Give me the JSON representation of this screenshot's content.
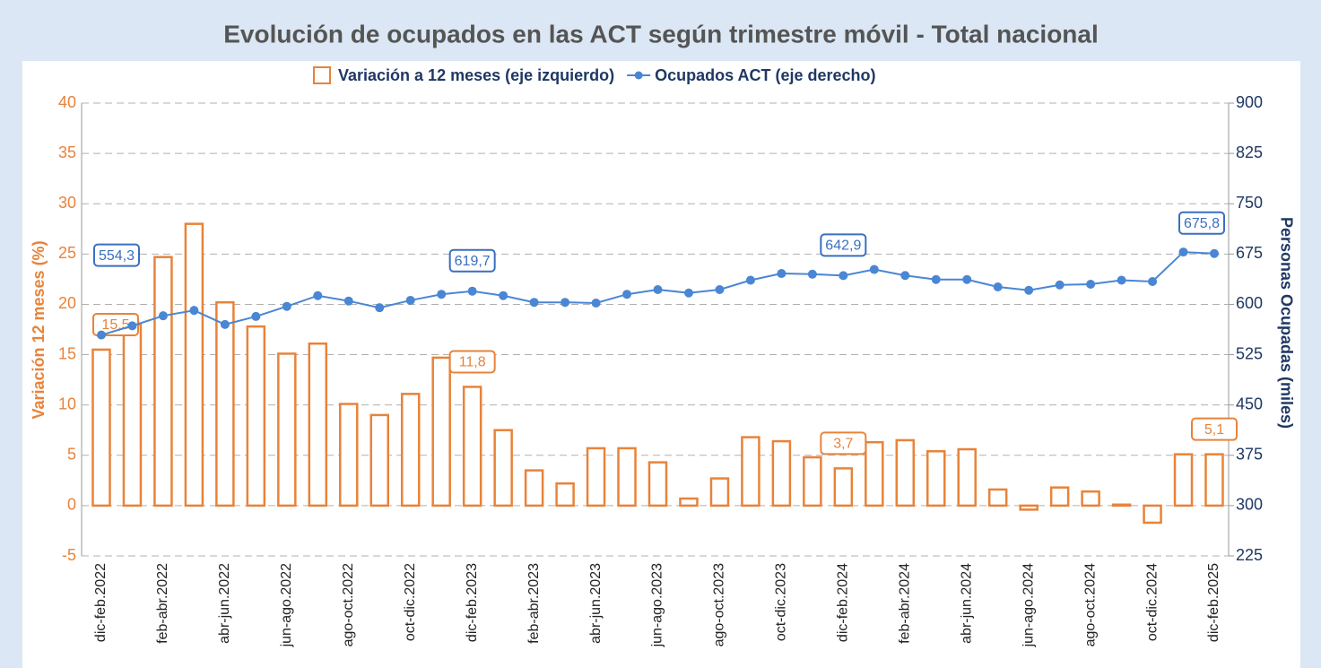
{
  "chart_data": {
    "type": "bar-line",
    "title": "Evolución de ocupados en las ACT según trimestre móvil - Total nacional",
    "ylabel": "Variación 12 meses (%)",
    "y2label": "Personas Ocupadas (miles)",
    "categories": [
      "dic-feb.2022",
      null,
      "feb-abr.2022",
      null,
      "abr-jun.2022",
      null,
      "jun-ago.2022",
      null,
      "ago-oct.2022",
      null,
      "oct-dic.2022",
      null,
      "dic-feb.2023",
      null,
      "feb-abr.2023",
      null,
      "abr-jun.2023",
      null,
      "jun-ago.2023",
      null,
      "ago-oct.2023",
      null,
      "oct-dic.2023",
      null,
      "dic-feb.2024",
      null,
      "feb-abr.2024",
      null,
      "abr-jun.2024",
      null,
      "jun-ago.2024",
      null,
      "ago-oct.2024",
      null,
      "oct-dic.2024",
      null,
      "dic-feb.2025"
    ],
    "series": [
      {
        "name": "Variación a 12 meses (eje izquierdo)",
        "type": "bar",
        "axis": "y",
        "color": "#e8833a",
        "values": [
          15.5,
          18.0,
          24.7,
          28.0,
          20.2,
          17.8,
          15.1,
          16.1,
          10.1,
          9.0,
          11.1,
          14.7,
          11.8,
          7.5,
          3.5,
          2.2,
          5.7,
          5.7,
          4.3,
          0.7,
          2.7,
          6.8,
          6.4,
          4.8,
          3.7,
          6.3,
          6.5,
          5.4,
          5.6,
          1.6,
          -0.4,
          1.8,
          1.4,
          0.1,
          -1.7,
          5.1,
          5.1
        ],
        "value_labels": [
          "15,5",
          null,
          null,
          null,
          null,
          null,
          null,
          null,
          null,
          null,
          null,
          null,
          "11,8",
          null,
          null,
          null,
          null,
          null,
          null,
          null,
          null,
          null,
          null,
          null,
          "3,7",
          null,
          null,
          null,
          null,
          null,
          null,
          null,
          null,
          null,
          null,
          null,
          "5,1"
        ]
      },
      {
        "name": "Ocupados ACT (eje derecho)",
        "type": "line",
        "axis": "y2",
        "color": "#4a86d4",
        "values": [
          554.3,
          568,
          583,
          591,
          570,
          582,
          597,
          613,
          605,
          595,
          606,
          615,
          619.7,
          613,
          603,
          603,
          602,
          615,
          622,
          617,
          622,
          636,
          646,
          645,
          642.9,
          652,
          643,
          637,
          637,
          626,
          621,
          629,
          630,
          636,
          634,
          678,
          675.8
        ],
        "value_labels": [
          "554,3",
          null,
          null,
          null,
          null,
          null,
          null,
          null,
          null,
          null,
          null,
          null,
          "619,7",
          null,
          null,
          null,
          null,
          null,
          null,
          null,
          null,
          null,
          null,
          null,
          "642,9",
          null,
          null,
          null,
          null,
          null,
          null,
          null,
          null,
          null,
          null,
          null,
          "675,8"
        ]
      }
    ],
    "ylim": [
      -5,
      40
    ],
    "yticks": [
      -5,
      0,
      5,
      10,
      15,
      20,
      25,
      30,
      35,
      40
    ],
    "y2lim": [
      225,
      900
    ],
    "y2ticks": [
      225,
      300,
      375,
      450,
      525,
      600,
      675,
      750,
      825,
      900
    ],
    "grid": true,
    "legend": "top"
  }
}
